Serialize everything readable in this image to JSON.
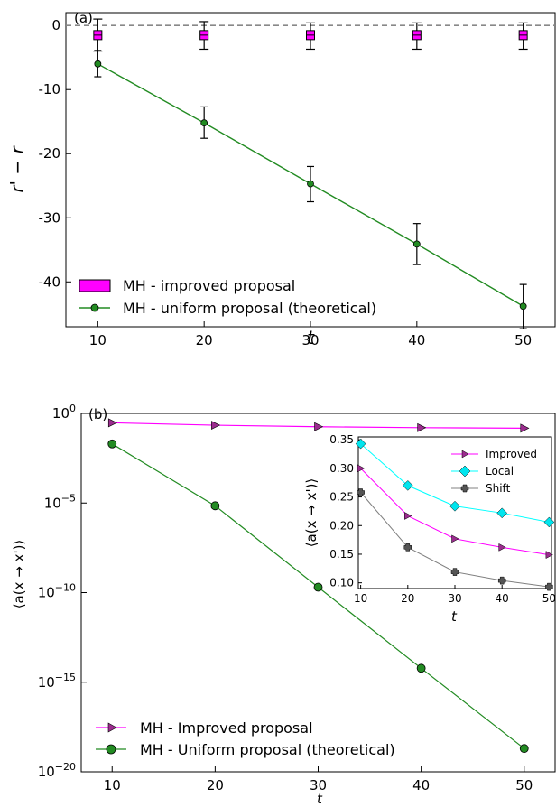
{
  "chart_data": [
    {
      "panel_label": "(a)",
      "type": "line",
      "xlabel": "t",
      "ylabel": "r' − r",
      "x": [
        10,
        20,
        30,
        40,
        50
      ],
      "xticks": [
        "10",
        "20",
        "30",
        "40",
        "50"
      ],
      "yticks": [
        "0",
        "-10",
        "-20",
        "-30",
        "-40"
      ],
      "xlim": [
        7,
        53
      ],
      "ylim": [
        -47,
        2
      ],
      "reference_line": 0,
      "legend_position": "bottom-left",
      "series": [
        {
          "name": "MH - improved proposal",
          "marker": "square",
          "color": "#ff00ff",
          "values": [
            -1.5,
            -1.5,
            -1.5,
            -1.5,
            -1.5
          ],
          "error_low": [
            -4,
            -3.7,
            -3.7,
            -3.7,
            -3.7
          ],
          "error_high": [
            1,
            0.6,
            0.4,
            0.4,
            0.4
          ]
        },
        {
          "name": "MH - uniform proposal (theoretical)",
          "marker": "circle",
          "color": "#228b22",
          "values": [
            -6,
            -15.2,
            -24.7,
            -34.1,
            -43.8
          ],
          "error_low": [
            -8,
            -17.6,
            -27.5,
            -37.3,
            -47.3
          ],
          "error_high": [
            -3.9,
            -12.7,
            -22,
            -30.9,
            -40.4
          ]
        }
      ]
    },
    {
      "panel_label": "(b)",
      "type": "line",
      "xlabel": "t",
      "ylabel": "⟨a(x → x')⟩",
      "yscale": "log",
      "x": [
        10,
        20,
        30,
        40,
        50
      ],
      "xticks": [
        "10",
        "20",
        "30",
        "40",
        "50"
      ],
      "yticks": [
        {
          "base": "10",
          "exp": "0",
          "value": 0
        },
        {
          "base": "10",
          "exp": "−5",
          "value": -5
        },
        {
          "base": "10",
          "exp": "−10",
          "value": -10
        },
        {
          "base": "10",
          "exp": "−15",
          "value": -15
        },
        {
          "base": "10",
          "exp": "−20",
          "value": -20
        }
      ],
      "xlim": [
        7,
        53
      ],
      "ylim_log10": [
        -20,
        0
      ],
      "legend_position": "bottom-left",
      "series": [
        {
          "name": "MH - Improved proposal",
          "marker": "triangle-right",
          "color": "#ff00ff",
          "values": [
            0.3,
            0.22,
            0.18,
            0.16,
            0.15
          ]
        },
        {
          "name": "MH - Uniform proposal (theoretical)",
          "marker": "circle",
          "color": "#228b22",
          "values": [
            0.02,
            7e-06,
            2e-10,
            6e-15,
            2e-19
          ]
        }
      ],
      "inset": {
        "type": "line",
        "xlabel": "t",
        "ylabel": "⟨a(x → x')⟩",
        "x": [
          10,
          20,
          30,
          40,
          50
        ],
        "xticks": [
          "10",
          "20",
          "30",
          "40",
          "50"
        ],
        "yticks": [
          "0.10",
          "0.15",
          "0.20",
          "0.25",
          "0.30",
          "0.35"
        ],
        "xlim": [
          9.5,
          50.5
        ],
        "ylim": [
          0.09,
          0.355
        ],
        "legend_position": "top-right",
        "series": [
          {
            "name": "Improved",
            "marker": "triangle-right",
            "color": "#ff00ff",
            "values": [
              0.3,
              0.217,
              0.177,
              0.162,
              0.149
            ]
          },
          {
            "name": "Local",
            "marker": "diamond",
            "color": "#00ffff",
            "values": [
              0.343,
              0.27,
              0.234,
              0.222,
              0.206
            ]
          },
          {
            "name": "Shift",
            "marker": "plus",
            "color": "#808080",
            "values": [
              0.258,
              0.162,
              0.119,
              0.104,
              0.093
            ]
          }
        ]
      }
    }
  ]
}
